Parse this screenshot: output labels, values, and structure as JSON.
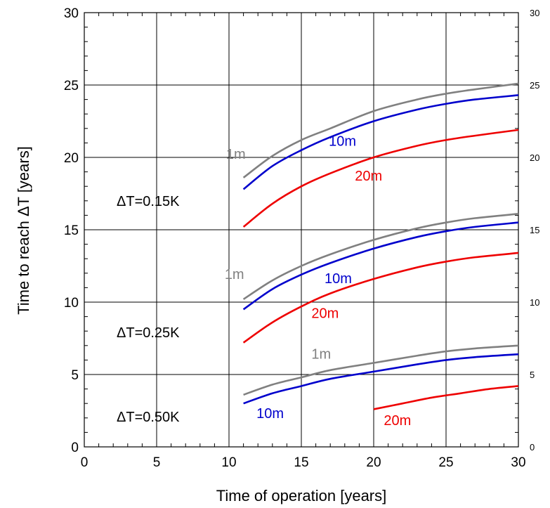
{
  "chart_data": {
    "type": "line",
    "xlabel": "Time of operation [years]",
    "ylabel": "Time to reach ΔT [years]",
    "xlim": [
      0,
      30
    ],
    "ylim": [
      0,
      30
    ],
    "x_ticks": [
      0,
      5,
      10,
      15,
      20,
      25,
      30
    ],
    "y_ticks": [
      0,
      5,
      10,
      15,
      20,
      25,
      30
    ],
    "x_tick_labels": [
      "0",
      "5",
      "10",
      "15",
      "20",
      "25",
      "30"
    ],
    "y_tick_labels": [
      "0",
      "5",
      "10",
      "15",
      "20",
      "25",
      "30"
    ],
    "y_tick_labels_right": [
      "0",
      "5",
      "10",
      "15",
      "20",
      "25",
      "30"
    ],
    "grid": true,
    "colors": {
      "1m": "#808080",
      "10m": "#0000cc",
      "20m": "#ee0000"
    },
    "groups": [
      {
        "label": "ΔT=0.15K",
        "series": [
          {
            "name": "1m",
            "color": "#808080",
            "x": [
              11,
              13,
              15,
              17,
              20,
              23,
              25,
              27,
              30
            ],
            "y": [
              18.6,
              20.1,
              21.2,
              22.0,
              23.2,
              24.0,
              24.4,
              24.7,
              25.1
            ]
          },
          {
            "name": "10m",
            "color": "#0000cc",
            "x": [
              11,
              13,
              15,
              17,
              20,
              23,
              25,
              27,
              30
            ],
            "y": [
              17.8,
              19.4,
              20.5,
              21.4,
              22.5,
              23.3,
              23.7,
              24.0,
              24.3
            ]
          },
          {
            "name": "20m",
            "color": "#ee0000",
            "x": [
              11,
              13,
              15,
              17,
              20,
              23,
              25,
              27,
              30
            ],
            "y": [
              15.2,
              16.8,
              18.0,
              18.9,
              20.0,
              20.8,
              21.2,
              21.5,
              21.9
            ]
          }
        ]
      },
      {
        "label": "ΔT=0.25K",
        "series": [
          {
            "name": "1m",
            "color": "#808080",
            "x": [
              11,
              13,
              15,
              17,
              20,
              23,
              25,
              27,
              30
            ],
            "y": [
              10.2,
              11.5,
              12.5,
              13.3,
              14.3,
              15.1,
              15.5,
              15.8,
              16.1
            ]
          },
          {
            "name": "10m",
            "color": "#0000cc",
            "x": [
              11,
              13,
              15,
              17,
              20,
              23,
              25,
              27,
              30
            ],
            "y": [
              9.5,
              10.9,
              11.9,
              12.7,
              13.7,
              14.5,
              14.9,
              15.2,
              15.5
            ]
          },
          {
            "name": "20m",
            "color": "#ee0000",
            "x": [
              11,
              13,
              15,
              17,
              20,
              23,
              25,
              27,
              30
            ],
            "y": [
              7.2,
              8.6,
              9.7,
              10.6,
              11.6,
              12.4,
              12.8,
              13.1,
              13.4
            ]
          }
        ]
      },
      {
        "label": "ΔT=0.50K",
        "series": [
          {
            "name": "1m",
            "color": "#808080",
            "x": [
              11,
              13,
              15,
              17,
              20,
              23,
              25,
              27,
              30
            ],
            "y": [
              3.6,
              4.3,
              4.8,
              5.3,
              5.8,
              6.3,
              6.6,
              6.8,
              7.0
            ]
          },
          {
            "name": "10m",
            "color": "#0000cc",
            "x": [
              11,
              13,
              15,
              17,
              20,
              23,
              25,
              27,
              30
            ],
            "y": [
              3.0,
              3.7,
              4.2,
              4.7,
              5.2,
              5.7,
              6.0,
              6.2,
              6.4
            ]
          },
          {
            "name": "20m",
            "color": "#ee0000",
            "x": [
              20,
              22,
              24,
              26,
              28,
              30
            ],
            "y": [
              2.6,
              3.0,
              3.4,
              3.7,
              4.0,
              4.2
            ]
          }
        ]
      }
    ]
  }
}
